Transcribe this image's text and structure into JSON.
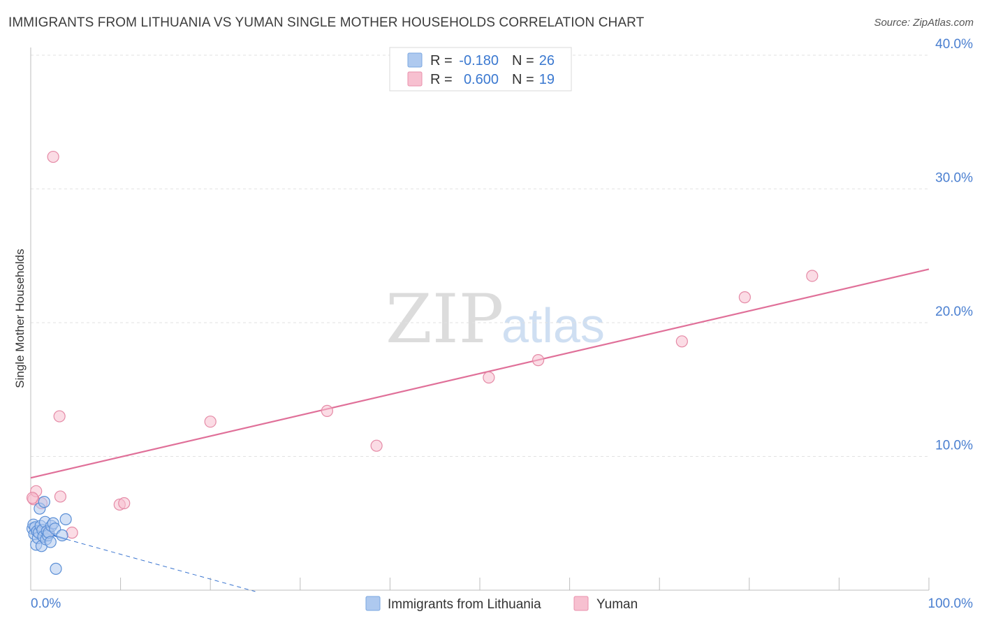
{
  "title": "IMMIGRANTS FROM LITHUANIA VS YUMAN SINGLE MOTHER HOUSEHOLDS CORRELATION CHART",
  "source": "Source: ZipAtlas.com",
  "watermark": {
    "zip": "ZIP",
    "atlas": "atlas"
  },
  "legend": {
    "r_label": "R =",
    "n_label": "N =",
    "rows": [
      {
        "r": "-0.180",
        "n": "26",
        "color": "#aec9ef",
        "stroke": "#7aa7e0"
      },
      {
        "r": "0.600",
        "n": "19",
        "color": "#f7c0d0",
        "stroke": "#ea8fab"
      }
    ]
  },
  "chart_data": {
    "type": "scatter",
    "title": "IMMIGRANTS FROM LITHUANIA VS YUMAN SINGLE MOTHER HOUSEHOLDS CORRELATION CHART",
    "xlabel": "",
    "ylabel": "Single Mother Households",
    "xlim": [
      0,
      100
    ],
    "ylim": [
      0,
      40
    ],
    "x_tick_labels": [
      "0.0%",
      "100.0%"
    ],
    "y_ticks": [
      10,
      20,
      30,
      40
    ],
    "y_tick_labels": [
      "10.0%",
      "20.0%",
      "30.0%",
      "40.0%"
    ],
    "grid": true,
    "series": [
      {
        "name": "Immigrants from Lithuania",
        "color": "#aec9ef",
        "stroke": "#5b8fd6",
        "line_color": "#3a75d0",
        "trend": {
          "x0": 0.0,
          "y0": 4.6,
          "x1": 4.0,
          "y1": 3.8,
          "dash_to_x": 25.0,
          "dash_to_y": -0.1
        },
        "points": [
          [
            0.2,
            4.6
          ],
          [
            0.3,
            4.9
          ],
          [
            0.4,
            4.2
          ],
          [
            0.5,
            4.7
          ],
          [
            0.6,
            3.4
          ],
          [
            0.7,
            4.4
          ],
          [
            0.8,
            3.9
          ],
          [
            0.9,
            4.3
          ],
          [
            1.0,
            6.1
          ],
          [
            1.1,
            4.8
          ],
          [
            1.2,
            3.3
          ],
          [
            1.3,
            4.5
          ],
          [
            1.4,
            4.0
          ],
          [
            1.5,
            6.6
          ],
          [
            1.6,
            5.1
          ],
          [
            1.7,
            3.8
          ],
          [
            1.8,
            4.4
          ],
          [
            1.9,
            4.1
          ],
          [
            2.0,
            4.3
          ],
          [
            2.2,
            3.6
          ],
          [
            2.3,
            4.8
          ],
          [
            2.5,
            5.0
          ],
          [
            2.7,
            4.6
          ],
          [
            3.5,
            4.1
          ],
          [
            3.9,
            5.3
          ],
          [
            2.8,
            1.6
          ]
        ]
      },
      {
        "name": "Yuman",
        "color": "#f7c0d0",
        "stroke": "#e58aa6",
        "line_color": "#e07099",
        "trend": {
          "x0": 0.0,
          "y0": 8.4,
          "x1": 100.0,
          "y1": 24.0
        },
        "points": [
          [
            0.3,
            6.8
          ],
          [
            0.6,
            7.4
          ],
          [
            1.2,
            6.5
          ],
          [
            2.5,
            32.4
          ],
          [
            3.2,
            13.0
          ],
          [
            3.3,
            7.0
          ],
          [
            1.9,
            4.4
          ],
          [
            4.6,
            4.3
          ],
          [
            9.9,
            6.4
          ],
          [
            10.4,
            6.5
          ],
          [
            20.0,
            12.6
          ],
          [
            33.0,
            13.4
          ],
          [
            38.5,
            10.8
          ],
          [
            51.0,
            15.9
          ],
          [
            56.5,
            17.2
          ],
          [
            72.5,
            18.6
          ],
          [
            79.5,
            21.9
          ],
          [
            87.0,
            23.5
          ],
          [
            0.2,
            6.9
          ]
        ]
      }
    ]
  }
}
